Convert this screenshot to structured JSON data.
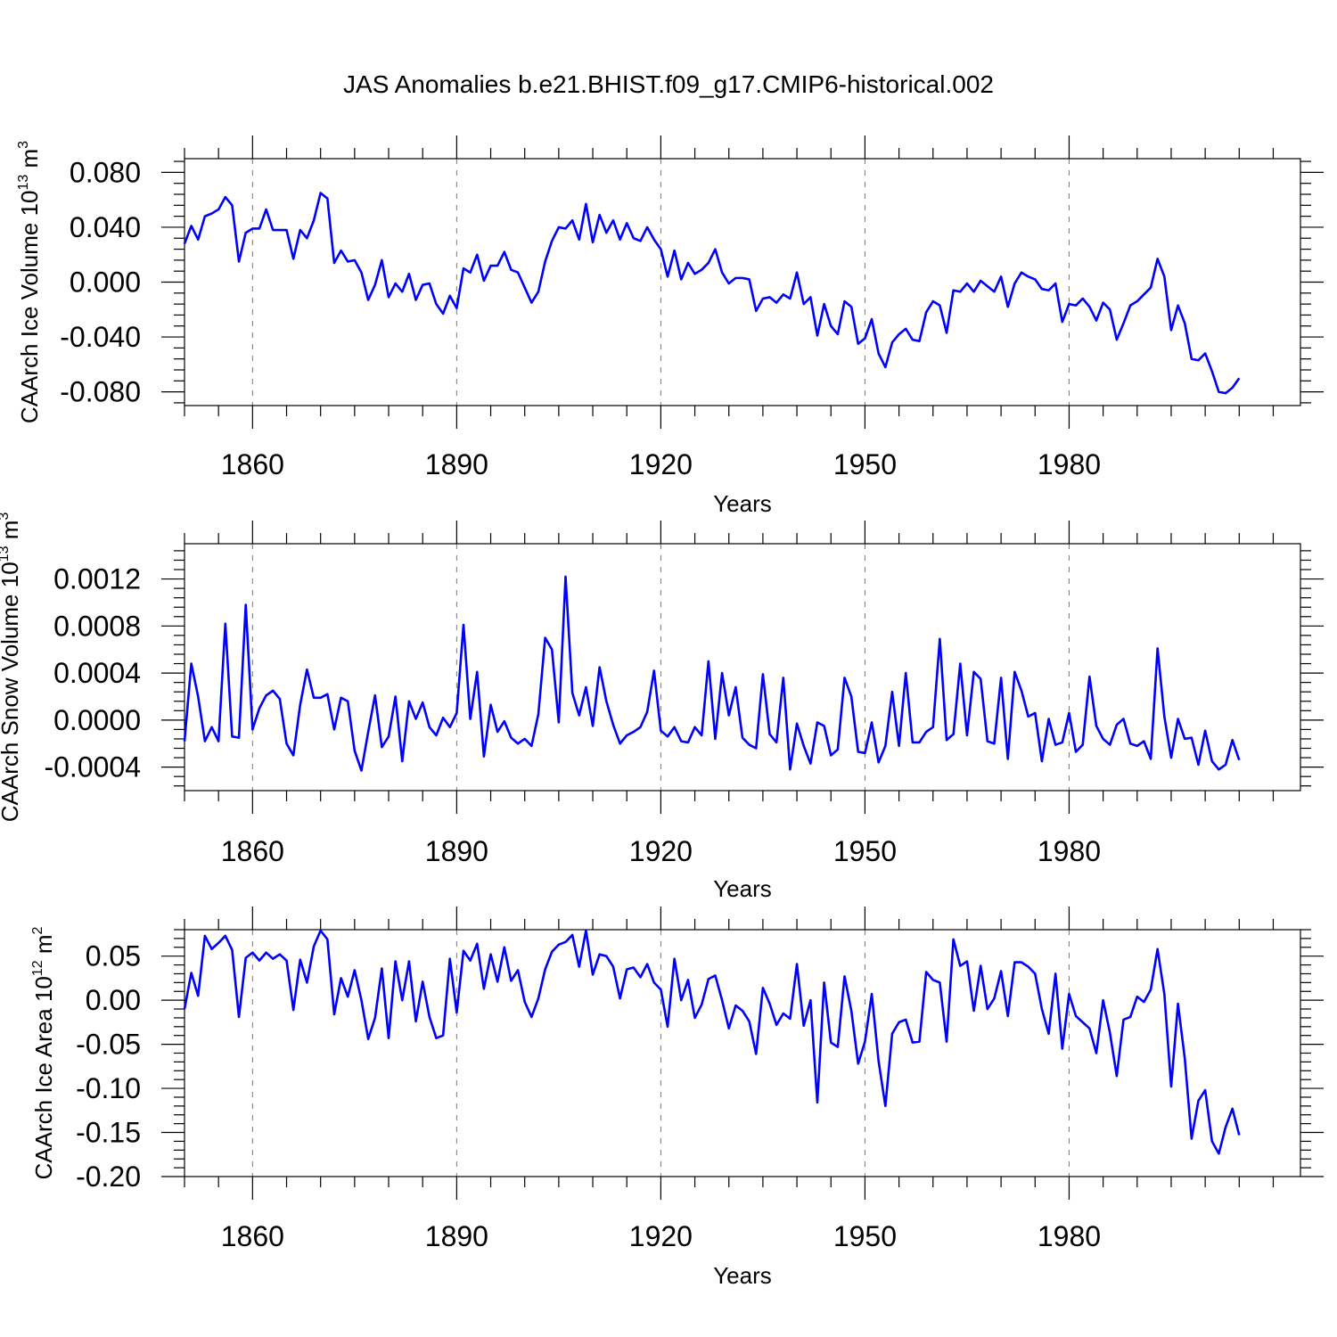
{
  "chart_data": {
    "title": "JAS Anomalies b.e21.BHIST.f09_g17.CMIP6-historical.002",
    "type": "line",
    "x_start": 1850,
    "x_end": 2014,
    "xlim": [
      1850,
      2014
    ],
    "xticks": [
      1860,
      1890,
      1920,
      1950,
      1980
    ],
    "xtick_labels": [
      "1860",
      "1890",
      "1920",
      "1950",
      "1980"
    ],
    "xlabel": "Years",
    "panels": [
      {
        "id": "ice-volume",
        "ylabel_main": "CAArch Ice Volume 10",
        "ylabel_exp": "13",
        "ylabel_unit": "m",
        "ylabel_unit_exp": "3",
        "ylim": [
          -0.09,
          0.09
        ],
        "yticks": [
          0.08,
          0.04,
          0.0,
          -0.04,
          -0.08
        ],
        "ytick_labels": [
          "0.080",
          "0.040",
          "0.000",
          "-0.040",
          "-0.080"
        ],
        "color": "#0000ff",
        "values": [
          0.028,
          0.041,
          0.031,
          0.048,
          0.05,
          0.053,
          0.062,
          0.056,
          0.015,
          0.036,
          0.039,
          0.039,
          0.053,
          0.038,
          0.038,
          0.038,
          0.017,
          0.038,
          0.032,
          0.045,
          0.065,
          0.061,
          0.014,
          0.023,
          0.015,
          0.016,
          0.007,
          -0.013,
          -0.002,
          0.016,
          -0.011,
          -0.001,
          -0.007,
          0.006,
          -0.013,
          -0.002,
          -0.001,
          -0.016,
          -0.023,
          -0.01,
          -0.019,
          0.01,
          0.007,
          0.02,
          0.001,
          0.012,
          0.012,
          0.022,
          0.009,
          0.007,
          -0.004,
          -0.015,
          -0.007,
          0.015,
          0.03,
          0.04,
          0.039,
          0.045,
          0.031,
          0.057,
          0.029,
          0.049,
          0.036,
          0.045,
          0.031,
          0.043,
          0.032,
          0.03,
          0.04,
          0.031,
          0.024,
          0.004,
          0.023,
          0.002,
          0.014,
          0.006,
          0.009,
          0.014,
          0.024,
          0.007,
          -0.001,
          0.003,
          0.003,
          0.002,
          -0.021,
          -0.012,
          -0.011,
          -0.015,
          -0.009,
          -0.012,
          0.007,
          -0.016,
          -0.011,
          -0.039,
          -0.016,
          -0.032,
          -0.038,
          -0.014,
          -0.018,
          -0.045,
          -0.041,
          -0.027,
          -0.052,
          -0.062,
          -0.044,
          -0.038,
          -0.034,
          -0.042,
          -0.043,
          -0.022,
          -0.014,
          -0.017,
          -0.037,
          -0.006,
          -0.007,
          -0.001,
          -0.007,
          0.001,
          -0.003,
          -0.007,
          0.004,
          -0.018,
          -0.001,
          0.007,
          0.004,
          0.002,
          -0.005,
          -0.006,
          -0.001,
          -0.029,
          -0.016,
          -0.017,
          -0.012,
          -0.018,
          -0.028,
          -0.015,
          -0.02,
          -0.042,
          -0.03,
          -0.017,
          -0.014,
          -0.009,
          -0.004,
          0.017,
          0.004,
          -0.035,
          -0.017,
          -0.03,
          -0.056,
          -0.057,
          -0.052,
          -0.065,
          -0.08,
          -0.081,
          -0.077,
          -0.07
        ]
      },
      {
        "id": "snow-volume",
        "ylabel_main": "CAArch Snow Volume 10",
        "ylabel_exp": "13",
        "ylabel_unit": "m",
        "ylabel_unit_exp": "3",
        "ylim": [
          -0.0006,
          0.0015
        ],
        "yticks": [
          0.0012,
          0.0008,
          0.0004,
          0.0,
          -0.0004
        ],
        "ytick_labels": [
          "0.0012",
          "0.0008",
          "0.0004",
          "0.0000",
          "-0.0004"
        ],
        "color": "#0000ff",
        "values": [
          -0.00018,
          0.00048,
          0.0002,
          -0.00018,
          -6e-05,
          -0.00018,
          0.00082,
          -0.00014,
          -0.00015,
          0.00098,
          -8e-05,
          0.0001,
          0.00021,
          0.00025,
          0.00018,
          -0.0002,
          -0.0003,
          0.00013,
          0.00043,
          0.00019,
          0.00019,
          0.00022,
          -8e-05,
          0.00019,
          0.00016,
          -0.00026,
          -0.00043,
          -0.0001,
          0.00021,
          -0.00023,
          -0.00014,
          0.0002,
          -0.00035,
          0.00016,
          1e-05,
          0.00015,
          -6e-05,
          -0.00013,
          2e-05,
          -6e-05,
          6e-05,
          0.00081,
          1e-05,
          0.00041,
          -0.00031,
          0.00013,
          -0.0001,
          -1e-05,
          -0.00015,
          -0.0002,
          -0.00016,
          -0.00022,
          5e-05,
          0.0007,
          0.0006,
          -2e-05,
          0.00122,
          0.00023,
          4e-05,
          0.00028,
          -5e-05,
          0.00045,
          0.00016,
          -4e-05,
          -0.0002,
          -0.00013,
          -0.0001,
          -6e-05,
          7e-05,
          0.00042,
          -9e-05,
          -0.00014,
          -6e-05,
          -0.00018,
          -0.00019,
          -6e-05,
          -0.00013,
          0.0005,
          -0.00016,
          0.0004,
          4e-05,
          0.00028,
          -0.00015,
          -0.00021,
          -0.00024,
          0.00039,
          -0.00012,
          -0.00019,
          0.00036,
          -0.00042,
          -3e-05,
          -0.00022,
          -0.00037,
          -2e-05,
          -5e-05,
          -0.0003,
          -0.00025,
          0.00036,
          0.0002,
          -0.00027,
          -0.00028,
          -2e-05,
          -0.00036,
          -0.00022,
          0.00024,
          -0.00022,
          0.0004,
          -0.00019,
          -0.00019,
          -0.0001,
          -6e-05,
          0.00069,
          -0.00017,
          -0.00012,
          0.00048,
          -0.00013,
          0.00041,
          0.00035,
          -0.00018,
          -0.0002,
          0.00036,
          -0.00033,
          0.00041,
          0.00025,
          3e-05,
          6e-05,
          -0.00035,
          1e-05,
          -0.00021,
          -0.00019,
          6e-05,
          -0.00027,
          -0.00021,
          0.00037,
          -5e-05,
          -0.00016,
          -0.00021,
          -4e-05,
          1e-05,
          -0.0002,
          -0.00022,
          -0.00018,
          -0.00033,
          0.00061,
          3e-05,
          -0.00032,
          1e-05,
          -0.00016,
          -0.00015,
          -0.00038,
          -9e-05,
          -0.00035,
          -0.00042,
          -0.00038,
          -0.00017,
          -0.00034
        ]
      },
      {
        "id": "ice-area",
        "ylabel_main": "CAArch Ice Area 10",
        "ylabel_exp": "12",
        "ylabel_unit": "m",
        "ylabel_unit_exp": "2",
        "ylim": [
          -0.2,
          0.08
        ],
        "yticks": [
          0.05,
          0.0,
          -0.05,
          -0.1,
          -0.15,
          -0.2
        ],
        "ytick_labels": [
          "0.05",
          "0.00",
          "-0.05",
          "-0.10",
          "-0.15",
          "-0.20"
        ],
        "color": "#0000ff",
        "values": [
          -0.01,
          0.031,
          0.005,
          0.073,
          0.058,
          0.065,
          0.073,
          0.057,
          -0.019,
          0.048,
          0.054,
          0.045,
          0.054,
          0.047,
          0.052,
          0.045,
          -0.011,
          0.046,
          0.02,
          0.061,
          0.079,
          0.069,
          -0.016,
          0.025,
          0.004,
          0.034,
          0.0,
          -0.044,
          -0.02,
          0.036,
          -0.043,
          0.044,
          0.0,
          0.044,
          -0.024,
          0.021,
          -0.019,
          -0.043,
          -0.04,
          0.047,
          -0.014,
          0.056,
          0.045,
          0.064,
          0.013,
          0.052,
          0.021,
          0.06,
          0.022,
          0.034,
          -0.002,
          -0.019,
          0.002,
          0.035,
          0.055,
          0.063,
          0.066,
          0.074,
          0.038,
          0.079,
          0.029,
          0.052,
          0.05,
          0.038,
          0.002,
          0.035,
          0.037,
          0.026,
          0.041,
          0.02,
          0.012,
          -0.03,
          0.047,
          0.0,
          0.023,
          -0.02,
          -0.005,
          0.024,
          0.028,
          0.0,
          -0.032,
          -0.006,
          -0.012,
          -0.024,
          -0.061,
          0.014,
          -0.004,
          -0.028,
          -0.015,
          -0.021,
          0.041,
          -0.029,
          0.0,
          -0.116,
          0.02,
          -0.048,
          -0.053,
          0.027,
          -0.012,
          -0.072,
          -0.047,
          0.007,
          -0.069,
          -0.12,
          -0.038,
          -0.025,
          -0.022,
          -0.048,
          -0.047,
          0.032,
          0.023,
          0.02,
          -0.047,
          0.069,
          0.039,
          0.044,
          -0.012,
          0.039,
          -0.01,
          0.002,
          0.033,
          -0.018,
          0.043,
          0.043,
          0.038,
          0.03,
          -0.01,
          -0.038,
          0.03,
          -0.055,
          0.007,
          -0.018,
          -0.025,
          -0.032,
          -0.06,
          0.0,
          -0.037,
          -0.086,
          -0.022,
          -0.019,
          0.004,
          -0.002,
          0.012,
          0.058,
          0.007,
          -0.098,
          -0.004,
          -0.066,
          -0.157,
          -0.114,
          -0.102,
          -0.16,
          -0.174,
          -0.144,
          -0.123,
          -0.153
        ]
      }
    ]
  }
}
